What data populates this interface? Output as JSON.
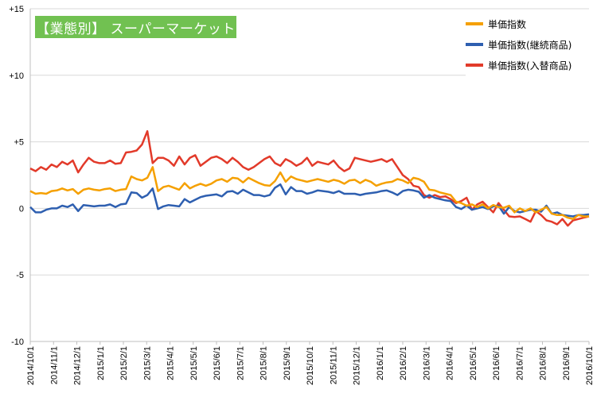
{
  "chart_data": {
    "type": "line",
    "title": "【業態別】 スーパーマーケット",
    "y_ticks": [
      {
        "value": 15,
        "label": "+15"
      },
      {
        "value": 10,
        "label": "+10"
      },
      {
        "value": 5,
        "label": "+5"
      },
      {
        "value": 0,
        "label": "0"
      },
      {
        "value": -5,
        "label": "-5"
      },
      {
        "value": -10,
        "label": "-10"
      }
    ],
    "ylim": [
      -10,
      15
    ],
    "x_labels": [
      "2014/10/1",
      "2014/11/1",
      "2014/12/1",
      "2015/1/1",
      "2015/2/1",
      "2015/3/1",
      "2015/4/1",
      "2015/5/1",
      "2015/6/1",
      "2015/7/1",
      "2015/8/1",
      "2015/9/1",
      "2015/10/1",
      "2015/11/1",
      "2015/12/1",
      "2016/1/1",
      "2016/2/1",
      "2016/3/1",
      "2016/4/1",
      "2016/5/1",
      "2016/6/1",
      "2016/7/1",
      "2016/8/1",
      "2016/9/1",
      "2016/10/1"
    ],
    "grid": "horizontal",
    "legend_position": "top-right",
    "series": [
      {
        "name": "単価指数",
        "color": "#f5a000",
        "values": [
          1.3,
          1.1,
          1.15,
          1.1,
          1.3,
          1.35,
          1.5,
          1.35,
          1.45,
          1.1,
          1.4,
          1.5,
          1.4,
          1.35,
          1.45,
          1.5,
          1.3,
          1.4,
          1.45,
          2.4,
          2.2,
          2.1,
          2.3,
          3.1,
          1.3,
          1.6,
          1.7,
          1.55,
          1.4,
          1.9,
          1.5,
          1.7,
          1.85,
          1.7,
          1.85,
          2.1,
          2.2,
          2.0,
          2.3,
          2.25,
          1.95,
          2.3,
          2.1,
          1.9,
          1.75,
          1.7,
          2.05,
          2.7,
          2.0,
          2.4,
          2.2,
          2.1,
          2.0,
          2.1,
          2.2,
          2.1,
          2.0,
          2.15,
          2.05,
          1.85,
          2.1,
          2.15,
          1.9,
          2.15,
          2.0,
          1.7,
          1.85,
          1.95,
          2.0,
          2.2,
          2.1,
          1.9,
          2.3,
          2.2,
          2.0,
          1.4,
          1.35,
          1.2,
          1.1,
          1.0,
          0.5,
          0.4,
          0.2,
          0.3,
          0.1,
          0.3,
          0.0,
          0.25,
          0.1,
          0.05,
          0.2,
          -0.3,
          0.0,
          -0.2,
          0.0,
          -0.3,
          -0.1,
          0.1,
          -0.4,
          -0.5,
          -0.5,
          -0.7,
          -0.8,
          -0.5,
          -0.6,
          -0.6
        ]
      },
      {
        "name": "単価指数(継続商品)",
        "color": "#2e5fb0",
        "values": [
          0.1,
          -0.3,
          -0.3,
          -0.1,
          0.0,
          0.0,
          0.2,
          0.1,
          0.3,
          -0.2,
          0.25,
          0.2,
          0.15,
          0.2,
          0.2,
          0.3,
          0.1,
          0.3,
          0.35,
          1.2,
          1.15,
          0.8,
          1.0,
          1.5,
          -0.05,
          0.15,
          0.25,
          0.2,
          0.15,
          0.7,
          0.45,
          0.65,
          0.85,
          0.95,
          1.0,
          1.05,
          0.9,
          1.25,
          1.3,
          1.1,
          1.4,
          1.2,
          1.0,
          1.0,
          0.9,
          1.0,
          1.55,
          1.8,
          1.05,
          1.6,
          1.3,
          1.3,
          1.1,
          1.2,
          1.35,
          1.3,
          1.25,
          1.15,
          1.3,
          1.1,
          1.1,
          1.1,
          1.0,
          1.1,
          1.15,
          1.2,
          1.3,
          1.35,
          1.2,
          1.0,
          1.3,
          1.4,
          1.35,
          1.25,
          0.8,
          1.0,
          0.8,
          0.7,
          0.6,
          0.55,
          0.1,
          -0.05,
          0.2,
          -0.1,
          0.0,
          0.1,
          -0.05,
          0.15,
          0.2,
          -0.4,
          0.1,
          -0.2,
          -0.3,
          -0.2,
          -0.1,
          -0.1,
          -0.25,
          0.2,
          -0.4,
          -0.3,
          -0.5,
          -0.55,
          -0.6,
          -0.5,
          -0.5,
          -0.45
        ]
      },
      {
        "name": "単価指数(入替商品)",
        "color": "#e23a2a",
        "values": [
          3.0,
          2.8,
          3.1,
          2.9,
          3.3,
          3.1,
          3.5,
          3.3,
          3.6,
          2.7,
          3.3,
          3.8,
          3.5,
          3.4,
          3.4,
          3.6,
          3.35,
          3.4,
          4.2,
          4.25,
          4.35,
          4.8,
          5.8,
          3.4,
          3.8,
          3.8,
          3.6,
          3.2,
          3.9,
          3.3,
          3.8,
          4.0,
          3.2,
          3.5,
          3.8,
          3.9,
          3.7,
          3.4,
          3.8,
          3.5,
          3.1,
          2.9,
          3.1,
          3.4,
          3.7,
          3.9,
          3.4,
          3.2,
          3.7,
          3.5,
          3.2,
          3.4,
          3.8,
          3.2,
          3.5,
          3.4,
          3.3,
          3.6,
          3.1,
          2.8,
          3.0,
          3.8,
          3.7,
          3.6,
          3.5,
          3.6,
          3.7,
          3.5,
          3.7,
          3.1,
          2.5,
          2.2,
          1.7,
          1.6,
          1.0,
          0.8,
          1.0,
          0.85,
          0.9,
          0.7,
          0.4,
          0.55,
          0.8,
          -0.1,
          0.3,
          0.5,
          0.1,
          -0.3,
          0.4,
          -0.1,
          -0.6,
          -0.65,
          -0.6,
          -0.8,
          -1.0,
          -0.2,
          -0.5,
          -0.9,
          -1.0,
          -1.2,
          -0.8,
          -1.3,
          -0.9,
          -0.8,
          -0.7,
          -0.6
        ]
      }
    ]
  }
}
